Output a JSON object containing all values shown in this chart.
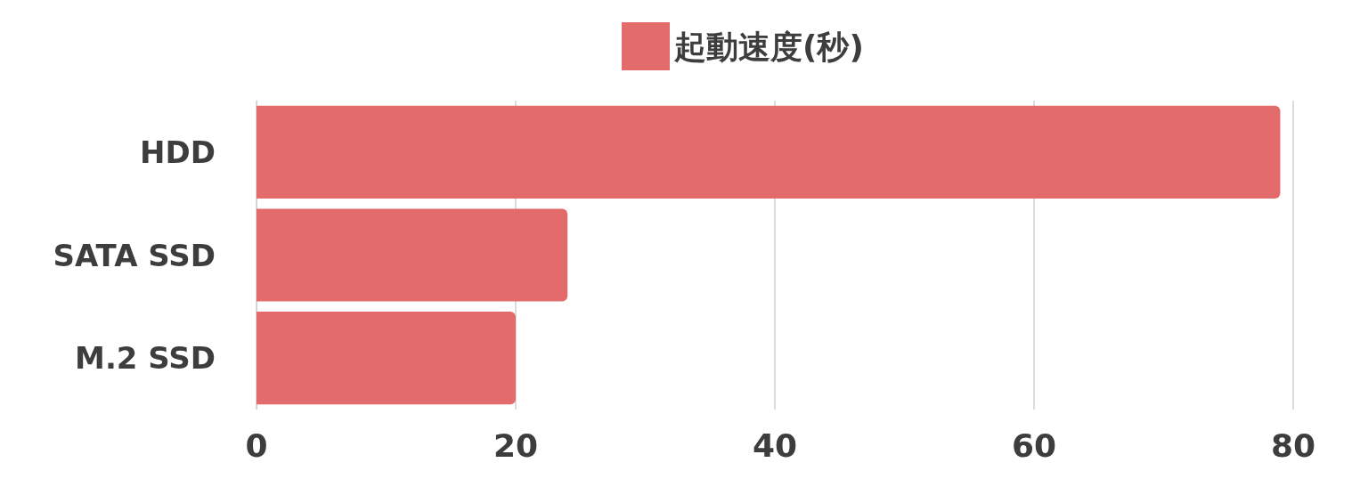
{
  "chart_data": {
    "type": "bar",
    "orientation": "horizontal",
    "categories": [
      "HDD",
      "SATA SSD",
      "M.2 SSD"
    ],
    "series": [
      {
        "name": "起動速度(秒)",
        "color": "#e46b6b",
        "values": [
          79,
          24,
          20
        ]
      }
    ],
    "xlim": [
      0,
      80
    ],
    "xticks": [
      0,
      20,
      40,
      60,
      80
    ],
    "grid": "x",
    "legend": "top"
  }
}
